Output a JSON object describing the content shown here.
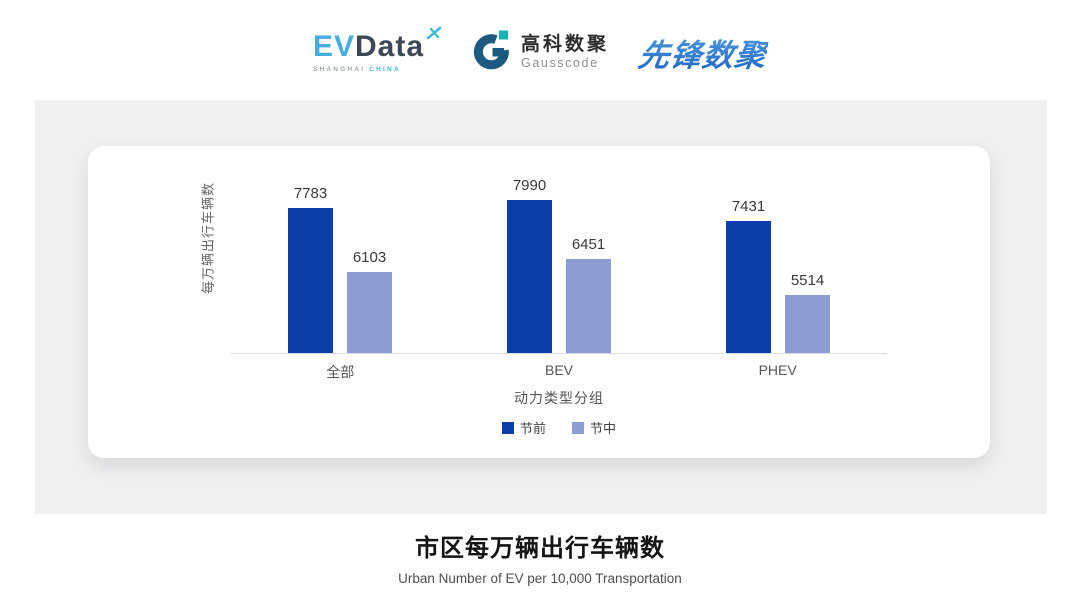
{
  "header": {
    "evdata": {
      "ev": "EV",
      "data": "Data",
      "sub_shanghai": "SHANGHAI",
      "sub_china": "CHINA"
    },
    "gausscode": {
      "cn": "高科数聚",
      "en": "Gausscode"
    },
    "xianfeng": {
      "text": "先锋数聚"
    }
  },
  "chart_data": {
    "type": "bar",
    "categories": [
      "全部",
      "BEV",
      "PHEV"
    ],
    "series": [
      {
        "name": "节前",
        "color": "#0b3ea8",
        "values": [
          7783,
          7990,
          7431
        ]
      },
      {
        "name": "节中",
        "color": "#8e9cd4",
        "values": [
          6103,
          6451,
          5514
        ]
      }
    ],
    "ylabel": "每万辆出行车辆数",
    "xlabel": "动力类型分组",
    "ylim": [
      4000,
      8400
    ],
    "grid": false,
    "legend_position": "bottom",
    "value_labels": true,
    "title": "市区每万辆出行车辆数",
    "subtitle": "Urban Number of EV per 10,000 Transportation"
  },
  "colors": {
    "panel_bg": "#f0f0f1",
    "card_bg": "#ffffff",
    "axis_line": "#dcdcdc",
    "series_pre": "#0b3ea8",
    "series_mid": "#8e9cd4",
    "brand_lightblue": "#45aede",
    "brand_darkslate": "#3d4856",
    "brand_teal": "#17b3b3",
    "brand_gausscode": "#1d5a82",
    "brand_xianfeng": "#2a74cf"
  }
}
